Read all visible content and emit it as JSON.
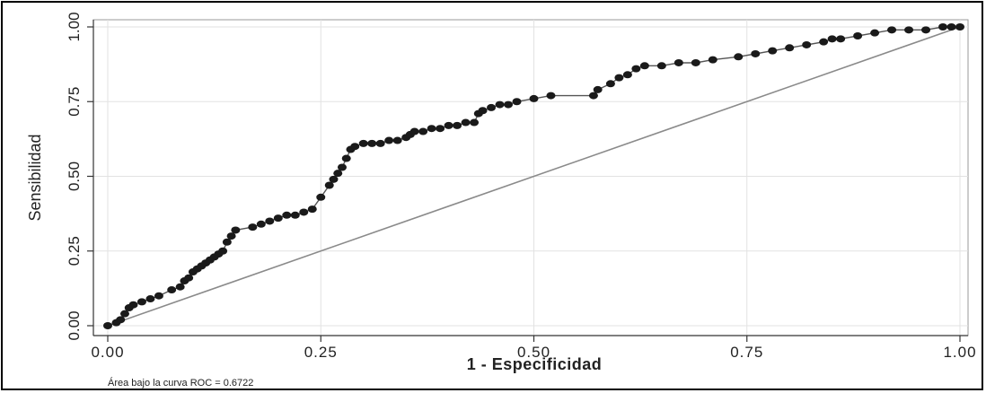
{
  "chart_data": {
    "type": "line",
    "title": "",
    "xlabel": "1 - Especificidad",
    "ylabel": "Sensibilidad",
    "xlim": [
      0,
      1
    ],
    "ylim": [
      0,
      1
    ],
    "x_ticks": [
      "0.00",
      "0.25",
      "0.50",
      "0.75",
      "1.00"
    ],
    "y_ticks": [
      "0.00",
      "0.25",
      "0.50",
      "0.75",
      "1.00"
    ],
    "grid": true,
    "annotation": "Área bajo la curva ROC = 0.6722",
    "series": [
      {
        "marker": "circle",
        "x": [
          0.0,
          0.01,
          0.015,
          0.02,
          0.025,
          0.03,
          0.04,
          0.05,
          0.06,
          0.075,
          0.085,
          0.09,
          0.095,
          0.1,
          0.105,
          0.11,
          0.115,
          0.12,
          0.125,
          0.13,
          0.135,
          0.14,
          0.145,
          0.15,
          0.17,
          0.18,
          0.19,
          0.2,
          0.21,
          0.22,
          0.23,
          0.24,
          0.25,
          0.26,
          0.265,
          0.27,
          0.275,
          0.28,
          0.285,
          0.29,
          0.3,
          0.31,
          0.32,
          0.33,
          0.34,
          0.35,
          0.355,
          0.36,
          0.37,
          0.38,
          0.39,
          0.4,
          0.41,
          0.42,
          0.43,
          0.435,
          0.44,
          0.45,
          0.46,
          0.47,
          0.48,
          0.5,
          0.52,
          0.57,
          0.575,
          0.59,
          0.6,
          0.61,
          0.62,
          0.63,
          0.65,
          0.67,
          0.69,
          0.71,
          0.74,
          0.76,
          0.78,
          0.8,
          0.82,
          0.84,
          0.85,
          0.86,
          0.88,
          0.9,
          0.92,
          0.94,
          0.96,
          0.98,
          0.99,
          1.0
        ],
        "y": [
          0.0,
          0.01,
          0.02,
          0.04,
          0.06,
          0.07,
          0.08,
          0.09,
          0.1,
          0.12,
          0.13,
          0.15,
          0.16,
          0.18,
          0.19,
          0.2,
          0.21,
          0.22,
          0.23,
          0.24,
          0.25,
          0.28,
          0.3,
          0.32,
          0.33,
          0.34,
          0.35,
          0.36,
          0.37,
          0.37,
          0.38,
          0.39,
          0.43,
          0.47,
          0.49,
          0.51,
          0.53,
          0.56,
          0.59,
          0.6,
          0.61,
          0.61,
          0.61,
          0.62,
          0.62,
          0.63,
          0.64,
          0.65,
          0.65,
          0.66,
          0.66,
          0.67,
          0.67,
          0.68,
          0.68,
          0.71,
          0.72,
          0.73,
          0.74,
          0.74,
          0.75,
          0.76,
          0.77,
          0.77,
          0.79,
          0.81,
          0.83,
          0.84,
          0.86,
          0.87,
          0.87,
          0.88,
          0.88,
          0.89,
          0.9,
          0.91,
          0.92,
          0.93,
          0.94,
          0.95,
          0.96,
          0.96,
          0.97,
          0.98,
          0.99,
          0.99,
          0.99,
          1.0,
          1.0,
          1.0
        ]
      },
      {
        "x": [
          0,
          1
        ],
        "y": [
          0,
          1
        ]
      }
    ]
  }
}
